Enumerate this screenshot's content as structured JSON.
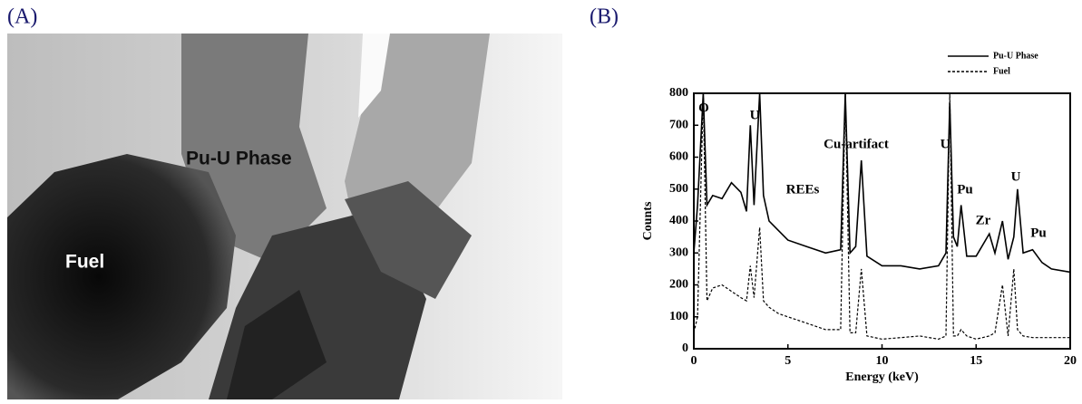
{
  "panels": {
    "a": {
      "label": "(A)",
      "annotations": [
        "Pu-U Phase",
        "Fuel"
      ]
    },
    "b": {
      "label": "(B)"
    }
  },
  "chart_data": {
    "type": "line",
    "xlabel": "Energy (keV)",
    "ylabel": "Counts",
    "x": [
      0,
      0.2,
      0.5,
      0.7,
      1,
      1.5,
      2,
      2.5,
      2.8,
      3.0,
      3.2,
      3.5,
      3.7,
      4,
      4.5,
      5,
      6,
      7,
      7.8,
      8.05,
      8.3,
      8.6,
      8.9,
      9.2,
      10,
      11,
      12,
      13,
      13.4,
      13.6,
      13.8,
      14,
      14.2,
      14.5,
      15,
      15.7,
      16,
      16.4,
      16.7,
      17,
      17.2,
      17.5,
      18,
      18.5,
      19,
      20
    ],
    "series": [
      {
        "name": "Pu-U Phase",
        "color": "#000000",
        "dashed": false,
        "values": [
          300,
          450,
          800,
          450,
          480,
          470,
          520,
          490,
          430,
          700,
          450,
          800,
          480,
          400,
          370,
          340,
          320,
          300,
          310,
          800,
          300,
          320,
          590,
          290,
          260,
          260,
          250,
          260,
          300,
          770,
          350,
          320,
          450,
          290,
          290,
          360,
          300,
          400,
          280,
          350,
          500,
          300,
          310,
          270,
          250,
          240
        ]
      },
      {
        "name": "Fuel",
        "color": "#000000",
        "dashed": true,
        "values": [
          50,
          100,
          800,
          150,
          190,
          200,
          180,
          160,
          150,
          260,
          160,
          380,
          150,
          130,
          110,
          100,
          80,
          60,
          60,
          800,
          50,
          50,
          250,
          40,
          30,
          35,
          40,
          30,
          40,
          800,
          40,
          40,
          60,
          40,
          30,
          40,
          50,
          200,
          40,
          250,
          60,
          40,
          35,
          35,
          35,
          35
        ]
      }
    ],
    "xlim": [
      0,
      20
    ],
    "xticks": [
      0,
      5,
      10,
      15,
      20
    ],
    "ylim": [
      0,
      800
    ],
    "yticks": [
      0,
      100,
      200,
      300,
      400,
      500,
      600,
      700,
      800
    ],
    "annotations": [
      "O",
      "U",
      "U",
      "U",
      "REEs",
      "Cu-artifact",
      "Pu",
      "Zr",
      "Pu"
    ]
  }
}
